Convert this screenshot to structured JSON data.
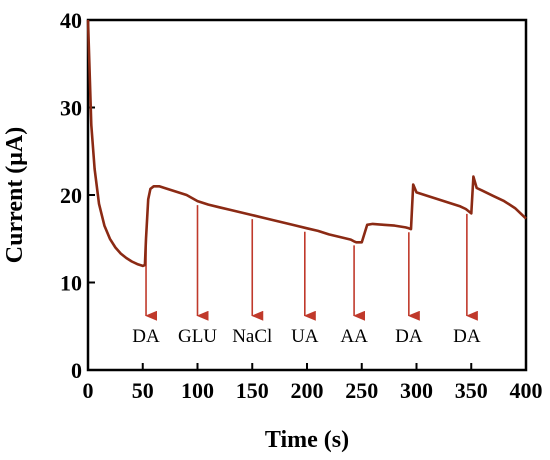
{
  "chart_data": {
    "type": "line",
    "title": "",
    "xlabel": "Time (s)",
    "ylabel": "Current (μA)",
    "xlim": [
      0,
      400
    ],
    "ylim": [
      0,
      40
    ],
    "xticks": [
      0,
      50,
      100,
      150,
      200,
      250,
      300,
      350,
      400
    ],
    "yticks": [
      0,
      10,
      20,
      30,
      40
    ],
    "grid": false,
    "legend": "none",
    "line_color": "#8b2a14",
    "arrow_color": "#c0392b",
    "series": [
      {
        "x": [
          0,
          3,
          6,
          10,
          15,
          20,
          25,
          30,
          35,
          40,
          45,
          50,
          52,
          53,
          55,
          57,
          60,
          65,
          70,
          80,
          90,
          100,
          110,
          120,
          130,
          140,
          150,
          160,
          170,
          180,
          190,
          200,
          210,
          220,
          230,
          240,
          243,
          245,
          250,
          255,
          260,
          270,
          280,
          290,
          293,
          295,
          297,
          300,
          310,
          320,
          330,
          340,
          345,
          348,
          350,
          352,
          355,
          360,
          370,
          380,
          390,
          400
        ],
        "y": [
          40,
          28,
          23,
          19,
          16.5,
          15,
          14,
          13.3,
          12.8,
          12.4,
          12.1,
          11.9,
          12,
          15,
          19.5,
          20.7,
          21,
          21,
          20.8,
          20.4,
          20,
          19.3,
          18.9,
          18.6,
          18.3,
          18,
          17.7,
          17.4,
          17.1,
          16.8,
          16.5,
          16.2,
          15.9,
          15.5,
          15.2,
          14.9,
          14.7,
          14.6,
          14.6,
          16.6,
          16.7,
          16.6,
          16.5,
          16.3,
          16.2,
          16.1,
          21.2,
          20.3,
          19.9,
          19.5,
          19.1,
          18.7,
          18.4,
          18.1,
          17.9,
          22.1,
          20.8,
          20.5,
          19.9,
          19.3,
          18.5,
          17.3
        ]
      }
    ],
    "annotations": [
      {
        "label": "DA",
        "x": 53
      },
      {
        "label": "GLU",
        "x": 100
      },
      {
        "label": "NaCl",
        "x": 150
      },
      {
        "label": "UA",
        "x": 198
      },
      {
        "label": "AA",
        "x": 243
      },
      {
        "label": "DA",
        "x": 293
      },
      {
        "label": "DA",
        "x": 346
      }
    ]
  }
}
